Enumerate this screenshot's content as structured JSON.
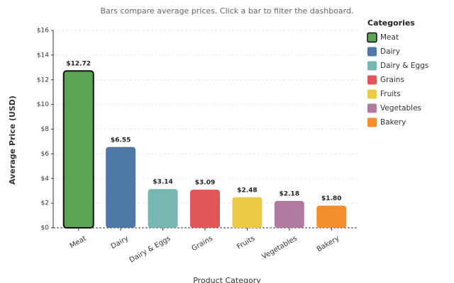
{
  "chart_data": {
    "type": "bar",
    "subtitle": "Bars compare average prices. Click a bar to filter the dashboard.",
    "x_label": "Product Category",
    "y_label": "Average Price (USD)",
    "categories": [
      "Meat",
      "Dairy",
      "Dairy & Eggs",
      "Grains",
      "Fruits",
      "Vegetables",
      "Bakery"
    ],
    "values": [
      12.72,
      6.55,
      3.14,
      3.09,
      2.48,
      2.18,
      1.8
    ],
    "value_labels": [
      "$12.72",
      "$6.55",
      "$3.14",
      "$3.09",
      "$2.48",
      "$2.18",
      "$1.80"
    ],
    "colors": [
      "#5aa454",
      "#4e79a7",
      "#76b7b2",
      "#e15759",
      "#edc948",
      "#b07aa1",
      "#f28e2b"
    ],
    "selected": "Meat",
    "ylim": [
      0,
      16
    ],
    "yticks": [
      {
        "value": 0,
        "label": "$0"
      },
      {
        "value": 2,
        "label": "$2"
      },
      {
        "value": 4,
        "label": "$4"
      },
      {
        "value": 6,
        "label": "$6"
      },
      {
        "value": 8,
        "label": "$8"
      },
      {
        "value": 10,
        "label": "$10"
      },
      {
        "value": 12,
        "label": "$12"
      },
      {
        "value": 14,
        "label": "$14"
      },
      {
        "value": 16,
        "label": "$16"
      }
    ],
    "grid": true,
    "legend_title": "Categories",
    "legend_position": "right"
  }
}
